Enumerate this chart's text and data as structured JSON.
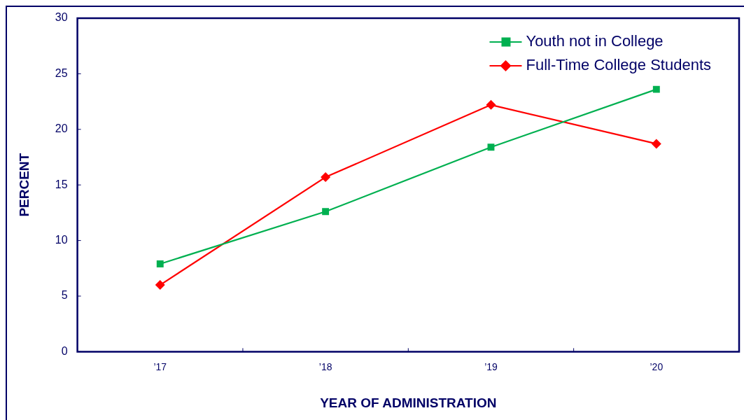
{
  "chart_data": {
    "type": "line",
    "xlabel": "YEAR OF ADMINISTRATION",
    "ylabel": "PERCENT",
    "categories": [
      "’17",
      "’18",
      "’19",
      "’20"
    ],
    "series": [
      {
        "name": "Youth not in College",
        "color": "#00b050",
        "values": [
          7.9,
          12.6,
          18.4,
          23.6
        ],
        "marker": "square"
      },
      {
        "name": "Full-Time College Students",
        "color": "#ff0000",
        "values": [
          6.0,
          15.7,
          22.2,
          18.7
        ],
        "marker": "diamond"
      }
    ],
    "ylim": [
      0,
      30
    ],
    "yticks": [
      0,
      5,
      10,
      15,
      20,
      25,
      30
    ],
    "grid": false,
    "legend": "top right",
    "line_style": "solid"
  }
}
